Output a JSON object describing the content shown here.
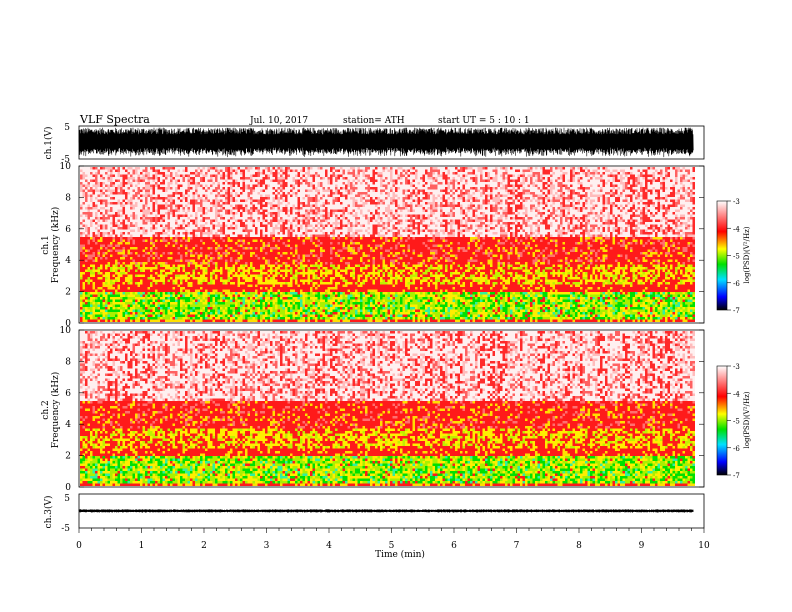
{
  "header": {
    "title": "VLF  Spectra",
    "date": "Jul.  10,  2017",
    "station": "station= ATH",
    "start": "start  UT  =    5  : 10 : 1"
  },
  "chart_data": [
    {
      "type": "line",
      "name": "ch1-waveform",
      "ylabel": "ch.1(V)",
      "ylim": [
        -5,
        5
      ],
      "yticks": [
        "5",
        "-5"
      ],
      "xlim": [
        0,
        10
      ],
      "data_end_min": 9.83,
      "amplitude_V": 4.5
    },
    {
      "type": "heatmap",
      "name": "ch1-spectrogram",
      "ylabel_top": "ch.1",
      "ylabel": "Frequency  (kHz)",
      "ylim": [
        0,
        10
      ],
      "yticks": [
        "0",
        "2",
        "4",
        "6",
        "8",
        "10"
      ],
      "xlim": [
        0,
        10
      ],
      "data_end_min": 9.83,
      "colorbar": {
        "label": "log(PSD)(V²/Hz)",
        "range": [
          -7,
          -3
        ],
        "ticks": [
          "-3",
          "-4",
          "-5",
          "-6",
          "-7"
        ],
        "colors": [
          "#000000",
          "#0000ff",
          "#00e0ff",
          "#00e000",
          "#ffff00",
          "#ff0000",
          "#ffffff"
        ]
      },
      "band_profile_kHz": [
        {
          "f": [
            0.0,
            0.3
          ],
          "level": "red"
        },
        {
          "f": [
            0.3,
            2.0
          ],
          "level": "yellow-green"
        },
        {
          "f": [
            2.0,
            2.6
          ],
          "level": "red"
        },
        {
          "f": [
            2.6,
            3.8
          ],
          "level": "red-yellow"
        },
        {
          "f": [
            3.8,
            5.5
          ],
          "level": "red"
        },
        {
          "f": [
            5.5,
            10.0
          ],
          "level": "pink-white"
        }
      ]
    },
    {
      "type": "heatmap",
      "name": "ch2-spectrogram",
      "ylabel_top": "ch.2",
      "ylabel": "Frequency  (kHz)",
      "ylim": [
        0,
        10
      ],
      "yticks": [
        "0",
        "2",
        "4",
        "6",
        "8",
        "10"
      ],
      "xlim": [
        0,
        10
      ],
      "data_end_min": 9.83,
      "colorbar": {
        "label": "log(PSD)(V²/Hz)",
        "range": [
          -7,
          -3
        ],
        "ticks": [
          "-3",
          "-4",
          "-5",
          "-6",
          "-7"
        ],
        "colors": [
          "#000000",
          "#0000ff",
          "#00e0ff",
          "#00e000",
          "#ffff00",
          "#ff0000",
          "#ffffff"
        ]
      }
    },
    {
      "type": "line",
      "name": "ch3-waveform",
      "ylabel": "ch.3(V)",
      "ylim": [
        -5,
        5
      ],
      "yticks": [
        "5",
        "-5"
      ],
      "xlim": [
        0,
        10
      ],
      "data_end_min": 9.83,
      "amplitude_V": 0.5,
      "offset_V": 0,
      "xlabel": "Time  (min)",
      "xticks": [
        "0",
        "1",
        "2",
        "3",
        "4",
        "5",
        "6",
        "7",
        "8",
        "9",
        "10"
      ]
    }
  ]
}
